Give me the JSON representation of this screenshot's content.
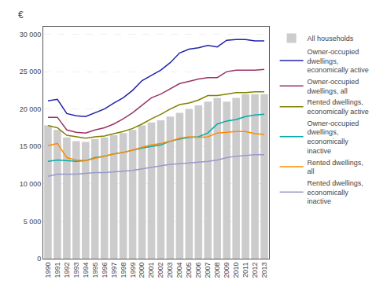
{
  "chart_data": {
    "type": "bar",
    "ylabel": "€",
    "categories": [
      "1990",
      "1991",
      "1992",
      "1993",
      "1994",
      "1995",
      "1996",
      "1997",
      "1998",
      "1999",
      "2000",
      "2001",
      "2002",
      "2003",
      "2004",
      "2005",
      "2006",
      "2007",
      "2008",
      "2009",
      "2010",
      "2011",
      "2012",
      "2013"
    ],
    "series": [
      {
        "name": "All households",
        "type": "bar",
        "color": "#cccccc",
        "values": [
          17800,
          17200,
          16200,
          15700,
          15600,
          16000,
          16200,
          16500,
          16800,
          17200,
          17800,
          18200,
          18500,
          19000,
          19500,
          20000,
          20500,
          21000,
          21500,
          21000,
          21500,
          22000,
          22000,
          22000
        ]
      },
      {
        "name": "Owner-occupied\ndwellings,\neconomically active",
        "type": "line",
        "color": "#2222aa",
        "values": [
          21100,
          21300,
          19400,
          19100,
          19000,
          19500,
          20000,
          20800,
          21500,
          22500,
          23800,
          24500,
          25200,
          26200,
          27500,
          28000,
          28200,
          28500,
          28300,
          29200,
          29300,
          29300,
          29100,
          29100
        ]
      },
      {
        "name": "Owner-occupied\ndwellings, all",
        "type": "line",
        "color": "#993366",
        "values": [
          18900,
          18900,
          17200,
          16900,
          16800,
          17200,
          17500,
          18000,
          18700,
          19500,
          20500,
          21500,
          22000,
          22700,
          23400,
          23700,
          24000,
          24200,
          24200,
          25000,
          25200,
          25200,
          25200,
          25300
        ]
      },
      {
        "name": "Rented dwellings,\neconomically active",
        "type": "line",
        "color": "#808000",
        "values": [
          17800,
          17500,
          16500,
          16300,
          16100,
          16300,
          16400,
          16700,
          17000,
          17400,
          18000,
          18700,
          19300,
          20000,
          20600,
          20800,
          21200,
          21800,
          21800,
          22000,
          22200,
          22200,
          22300,
          22300
        ]
      },
      {
        "name": "Owner-occupied\ndwellings,\neconomically\ninactive",
        "type": "line",
        "color": "#00aaaa",
        "values": [
          13000,
          13200,
          13100,
          13000,
          13100,
          13500,
          13700,
          14000,
          14200,
          14500,
          14800,
          15000,
          15200,
          15700,
          16000,
          16200,
          16300,
          16800,
          18000,
          18400,
          18600,
          19000,
          19200,
          19300
        ]
      },
      {
        "name": "Rented dwellings,\nall",
        "type": "line",
        "color": "#ff8c00",
        "values": [
          15100,
          15400,
          13500,
          13200,
          13100,
          13400,
          13700,
          14000,
          14200,
          14500,
          14900,
          15200,
          15400,
          15700,
          16100,
          16300,
          16200,
          16300,
          16800,
          16900,
          17000,
          17000,
          16700,
          16600
        ]
      },
      {
        "name": "Rented dwellings,\neconomically\ninactive",
        "type": "line",
        "color": "#9999cc",
        "values": [
          11000,
          11300,
          11300,
          11300,
          11400,
          11500,
          11500,
          11600,
          11700,
          11800,
          12000,
          12200,
          12400,
          12600,
          12700,
          12800,
          12900,
          13000,
          13200,
          13500,
          13700,
          13800,
          13900,
          13900
        ]
      }
    ],
    "ylim": [
      0,
      31000
    ],
    "yticks": [
      0,
      {
        "value": 5000,
        "label": "5 000"
      },
      {
        "value": 10000,
        "label": "10 000"
      },
      {
        "value": 15000,
        "label": "15 000"
      },
      {
        "value": 20000,
        "label": "20 000"
      },
      {
        "value": 25000,
        "label": "25 000"
      },
      {
        "value": 30000,
        "label": "30 000"
      }
    ],
    "grid": true,
    "legend": "right"
  }
}
